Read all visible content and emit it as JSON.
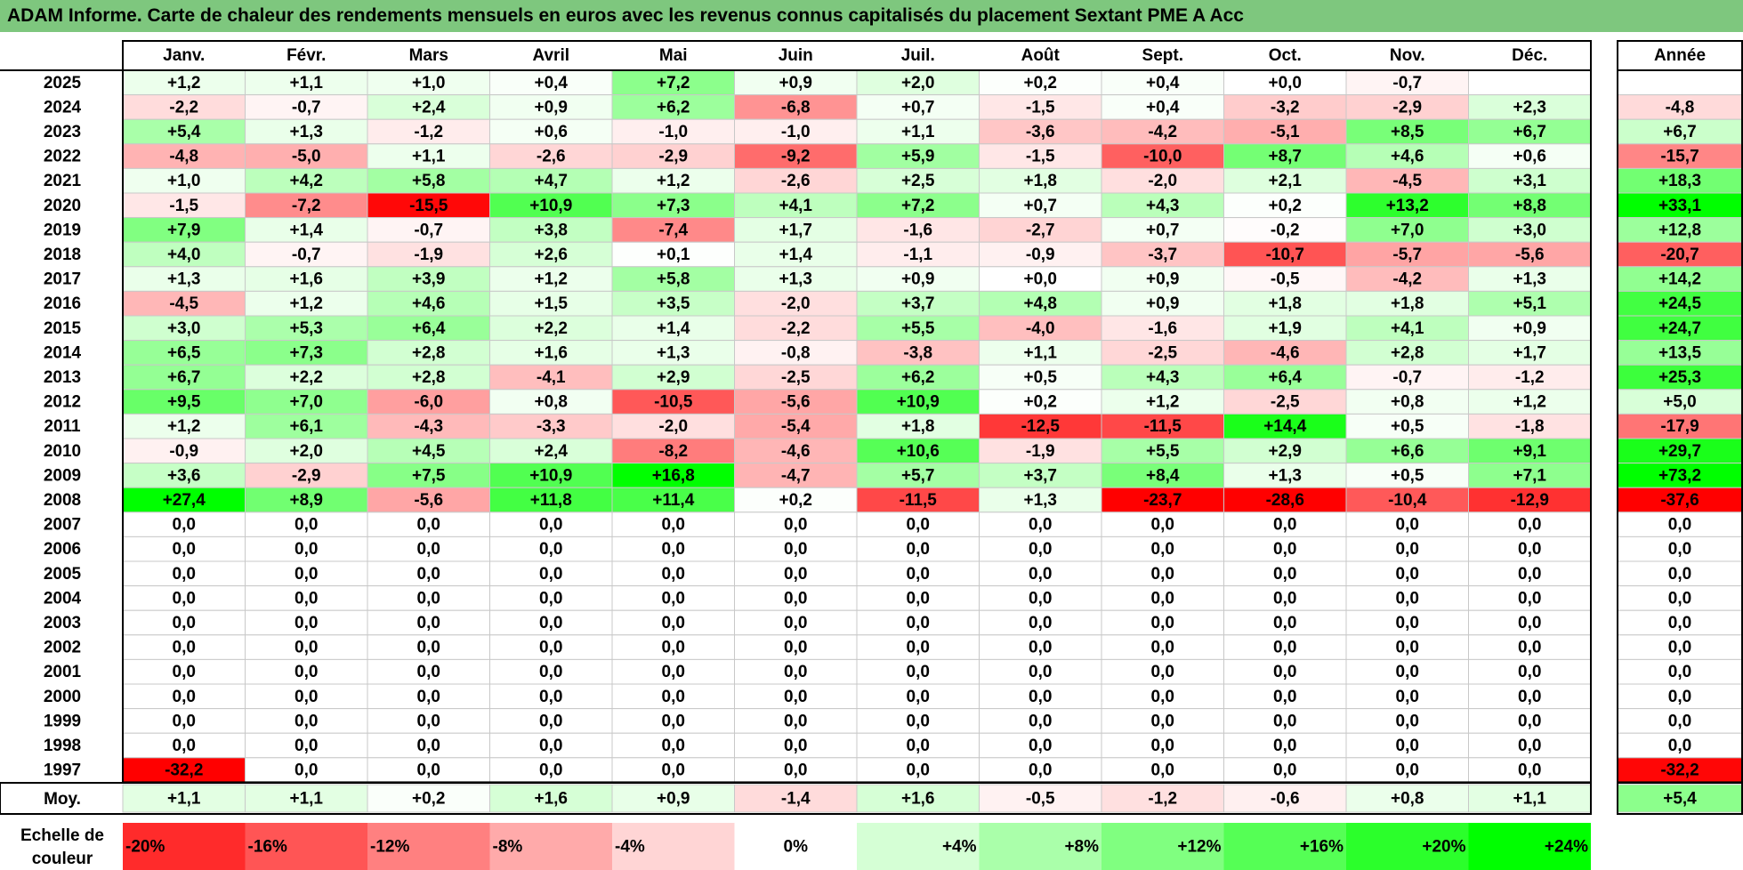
{
  "title": "ADAM Informe. Carte de chaleur des rendements mensuels en euros avec les revenus connus capitalisés du placement Sextant PME A Acc",
  "chart_data": {
    "type": "heatmap",
    "columns": [
      "Janv.",
      "Févr.",
      "Mars",
      "Avril",
      "Mai",
      "Juin",
      "Juil.",
      "Août",
      "Sept.",
      "Oct.",
      "Nov.",
      "Déc."
    ],
    "year_header": "Année",
    "rows": [
      {
        "year": "2025",
        "values": [
          "+1,2",
          "+1,1",
          "+1,0",
          "+0,4",
          "+7,2",
          "+0,9",
          "+2,0",
          "+0,2",
          "+0,4",
          "+0,0",
          "-0,7",
          ""
        ],
        "annual": ""
      },
      {
        "year": "2024",
        "values": [
          "-2,2",
          "-0,7",
          "+2,4",
          "+0,9",
          "+6,2",
          "-6,8",
          "+0,7",
          "-1,5",
          "+0,4",
          "-3,2",
          "-2,9",
          "+2,3"
        ],
        "annual": "-4,8"
      },
      {
        "year": "2023",
        "values": [
          "+5,4",
          "+1,3",
          "-1,2",
          "+0,6",
          "-1,0",
          "-1,0",
          "+1,1",
          "-3,6",
          "-4,2",
          "-5,1",
          "+8,5",
          "+6,7"
        ],
        "annual": "+6,7"
      },
      {
        "year": "2022",
        "values": [
          "-4,8",
          "-5,0",
          "+1,1",
          "-2,6",
          "-2,9",
          "-9,2",
          "+5,9",
          "-1,5",
          "-10,0",
          "+8,7",
          "+4,6",
          "+0,6"
        ],
        "annual": "-15,7"
      },
      {
        "year": "2021",
        "values": [
          "+1,0",
          "+4,2",
          "+5,8",
          "+4,7",
          "+1,2",
          "-2,6",
          "+2,5",
          "+1,8",
          "-2,0",
          "+2,1",
          "-4,5",
          "+3,1"
        ],
        "annual": "+18,3"
      },
      {
        "year": "2020",
        "values": [
          "-1,5",
          "-7,2",
          "-15,5",
          "+10,9",
          "+7,3",
          "+4,1",
          "+7,2",
          "+0,7",
          "+4,3",
          "+0,2",
          "+13,2",
          "+8,8"
        ],
        "annual": "+33,1"
      },
      {
        "year": "2019",
        "values": [
          "+7,9",
          "+1,4",
          "-0,7",
          "+3,8",
          "-7,4",
          "+1,7",
          "-1,6",
          "-2,7",
          "+0,7",
          "-0,2",
          "+7,0",
          "+3,0"
        ],
        "annual": "+12,8"
      },
      {
        "year": "2018",
        "values": [
          "+4,0",
          "-0,7",
          "-1,9",
          "+2,6",
          "+0,1",
          "+1,4",
          "-1,1",
          "-0,9",
          "-3,7",
          "-10,7",
          "-5,7",
          "-5,6"
        ],
        "annual": "-20,7"
      },
      {
        "year": "2017",
        "values": [
          "+1,3",
          "+1,6",
          "+3,9",
          "+1,2",
          "+5,8",
          "+1,3",
          "+0,9",
          "+0,0",
          "+0,9",
          "-0,5",
          "-4,2",
          "+1,3"
        ],
        "annual": "+14,2"
      },
      {
        "year": "2016",
        "values": [
          "-4,5",
          "+1,2",
          "+4,6",
          "+1,5",
          "+3,5",
          "-2,0",
          "+3,7",
          "+4,8",
          "+0,9",
          "+1,8",
          "+1,8",
          "+5,1"
        ],
        "annual": "+24,5"
      },
      {
        "year": "2015",
        "values": [
          "+3,0",
          "+5,3",
          "+6,4",
          "+2,2",
          "+1,4",
          "-2,2",
          "+5,5",
          "-4,0",
          "-1,6",
          "+1,9",
          "+4,1",
          "+0,9"
        ],
        "annual": "+24,7"
      },
      {
        "year": "2014",
        "values": [
          "+6,5",
          "+7,3",
          "+2,8",
          "+1,6",
          "+1,3",
          "-0,8",
          "-3,8",
          "+1,1",
          "-2,5",
          "-4,6",
          "+2,8",
          "+1,7"
        ],
        "annual": "+13,5"
      },
      {
        "year": "2013",
        "values": [
          "+6,7",
          "+2,2",
          "+2,8",
          "-4,1",
          "+2,9",
          "-2,5",
          "+6,2",
          "+0,5",
          "+4,3",
          "+6,4",
          "-0,7",
          "-1,2"
        ],
        "annual": "+25,3"
      },
      {
        "year": "2012",
        "values": [
          "+9,5",
          "+7,0",
          "-6,0",
          "+0,8",
          "-10,5",
          "-5,6",
          "+10,9",
          "+0,2",
          "+1,2",
          "-2,5",
          "+0,8",
          "+1,2"
        ],
        "annual": "+5,0"
      },
      {
        "year": "2011",
        "values": [
          "+1,2",
          "+6,1",
          "-4,3",
          "-3,3",
          "-2,0",
          "-5,4",
          "+1,8",
          "-12,5",
          "-11,5",
          "+14,4",
          "+0,5",
          "-1,8"
        ],
        "annual": "-17,9"
      },
      {
        "year": "2010",
        "values": [
          "-0,9",
          "+2,0",
          "+4,5",
          "+2,4",
          "-8,2",
          "-4,6",
          "+10,6",
          "-1,9",
          "+5,5",
          "+2,9",
          "+6,6",
          "+9,1"
        ],
        "annual": "+29,7"
      },
      {
        "year": "2009",
        "values": [
          "+3,6",
          "-2,9",
          "+7,5",
          "+10,9",
          "+16,8",
          "-4,7",
          "+5,7",
          "+3,7",
          "+8,4",
          "+1,3",
          "+0,5",
          "+7,1"
        ],
        "annual": "+73,2"
      },
      {
        "year": "2008",
        "values": [
          "+27,4",
          "+8,9",
          "-5,6",
          "+11,8",
          "+11,4",
          "+0,2",
          "-11,5",
          "+1,3",
          "-23,7",
          "-28,6",
          "-10,4",
          "-12,9"
        ],
        "annual": "-37,6"
      },
      {
        "year": "2007",
        "values": [
          "0,0",
          "0,0",
          "0,0",
          "0,0",
          "0,0",
          "0,0",
          "0,0",
          "0,0",
          "0,0",
          "0,0",
          "0,0",
          "0,0"
        ],
        "annual": "0,0"
      },
      {
        "year": "2006",
        "values": [
          "0,0",
          "0,0",
          "0,0",
          "0,0",
          "0,0",
          "0,0",
          "0,0",
          "0,0",
          "0,0",
          "0,0",
          "0,0",
          "0,0"
        ],
        "annual": "0,0"
      },
      {
        "year": "2005",
        "values": [
          "0,0",
          "0,0",
          "0,0",
          "0,0",
          "0,0",
          "0,0",
          "0,0",
          "0,0",
          "0,0",
          "0,0",
          "0,0",
          "0,0"
        ],
        "annual": "0,0"
      },
      {
        "year": "2004",
        "values": [
          "0,0",
          "0,0",
          "0,0",
          "0,0",
          "0,0",
          "0,0",
          "0,0",
          "0,0",
          "0,0",
          "0,0",
          "0,0",
          "0,0"
        ],
        "annual": "0,0"
      },
      {
        "year": "2003",
        "values": [
          "0,0",
          "0,0",
          "0,0",
          "0,0",
          "0,0",
          "0,0",
          "0,0",
          "0,0",
          "0,0",
          "0,0",
          "0,0",
          "0,0"
        ],
        "annual": "0,0"
      },
      {
        "year": "2002",
        "values": [
          "0,0",
          "0,0",
          "0,0",
          "0,0",
          "0,0",
          "0,0",
          "0,0",
          "0,0",
          "0,0",
          "0,0",
          "0,0",
          "0,0"
        ],
        "annual": "0,0"
      },
      {
        "year": "2001",
        "values": [
          "0,0",
          "0,0",
          "0,0",
          "0,0",
          "0,0",
          "0,0",
          "0,0",
          "0,0",
          "0,0",
          "0,0",
          "0,0",
          "0,0"
        ],
        "annual": "0,0"
      },
      {
        "year": "2000",
        "values": [
          "0,0",
          "0,0",
          "0,0",
          "0,0",
          "0,0",
          "0,0",
          "0,0",
          "0,0",
          "0,0",
          "0,0",
          "0,0",
          "0,0"
        ],
        "annual": "0,0"
      },
      {
        "year": "1999",
        "values": [
          "0,0",
          "0,0",
          "0,0",
          "0,0",
          "0,0",
          "0,0",
          "0,0",
          "0,0",
          "0,0",
          "0,0",
          "0,0",
          "0,0"
        ],
        "annual": "0,0"
      },
      {
        "year": "1998",
        "values": [
          "0,0",
          "0,0",
          "0,0",
          "0,0",
          "0,0",
          "0,0",
          "0,0",
          "0,0",
          "0,0",
          "0,0",
          "0,0",
          "0,0"
        ],
        "annual": "0,0"
      },
      {
        "year": "1997",
        "values": [
          "-32,2",
          "0,0",
          "0,0",
          "0,0",
          "0,0",
          "0,0",
          "0,0",
          "0,0",
          "0,0",
          "0,0",
          "0,0",
          "0,0"
        ],
        "annual": "-32,2"
      }
    ],
    "average": {
      "label": "Moy.",
      "values": [
        "+1,1",
        "+1,1",
        "+0,2",
        "+1,6",
        "+0,9",
        "-1,4",
        "+1,6",
        "-0,5",
        "-1,2",
        "-0,6",
        "+0,8",
        "+1,1"
      ],
      "annual": "+5,4"
    },
    "color_scale": {
      "label_line1": "Echelle de",
      "label_line2": "couleur",
      "steps": [
        "-20%",
        "-16%",
        "-12%",
        "-8%",
        "-4%",
        "0%",
        "+4%",
        "+8%",
        "+12%",
        "+16%",
        "+20%",
        "+24%"
      ],
      "negative_color": "#ff0000",
      "neutral_color": "#ffffff",
      "positive_color": "#00ff00"
    }
  }
}
